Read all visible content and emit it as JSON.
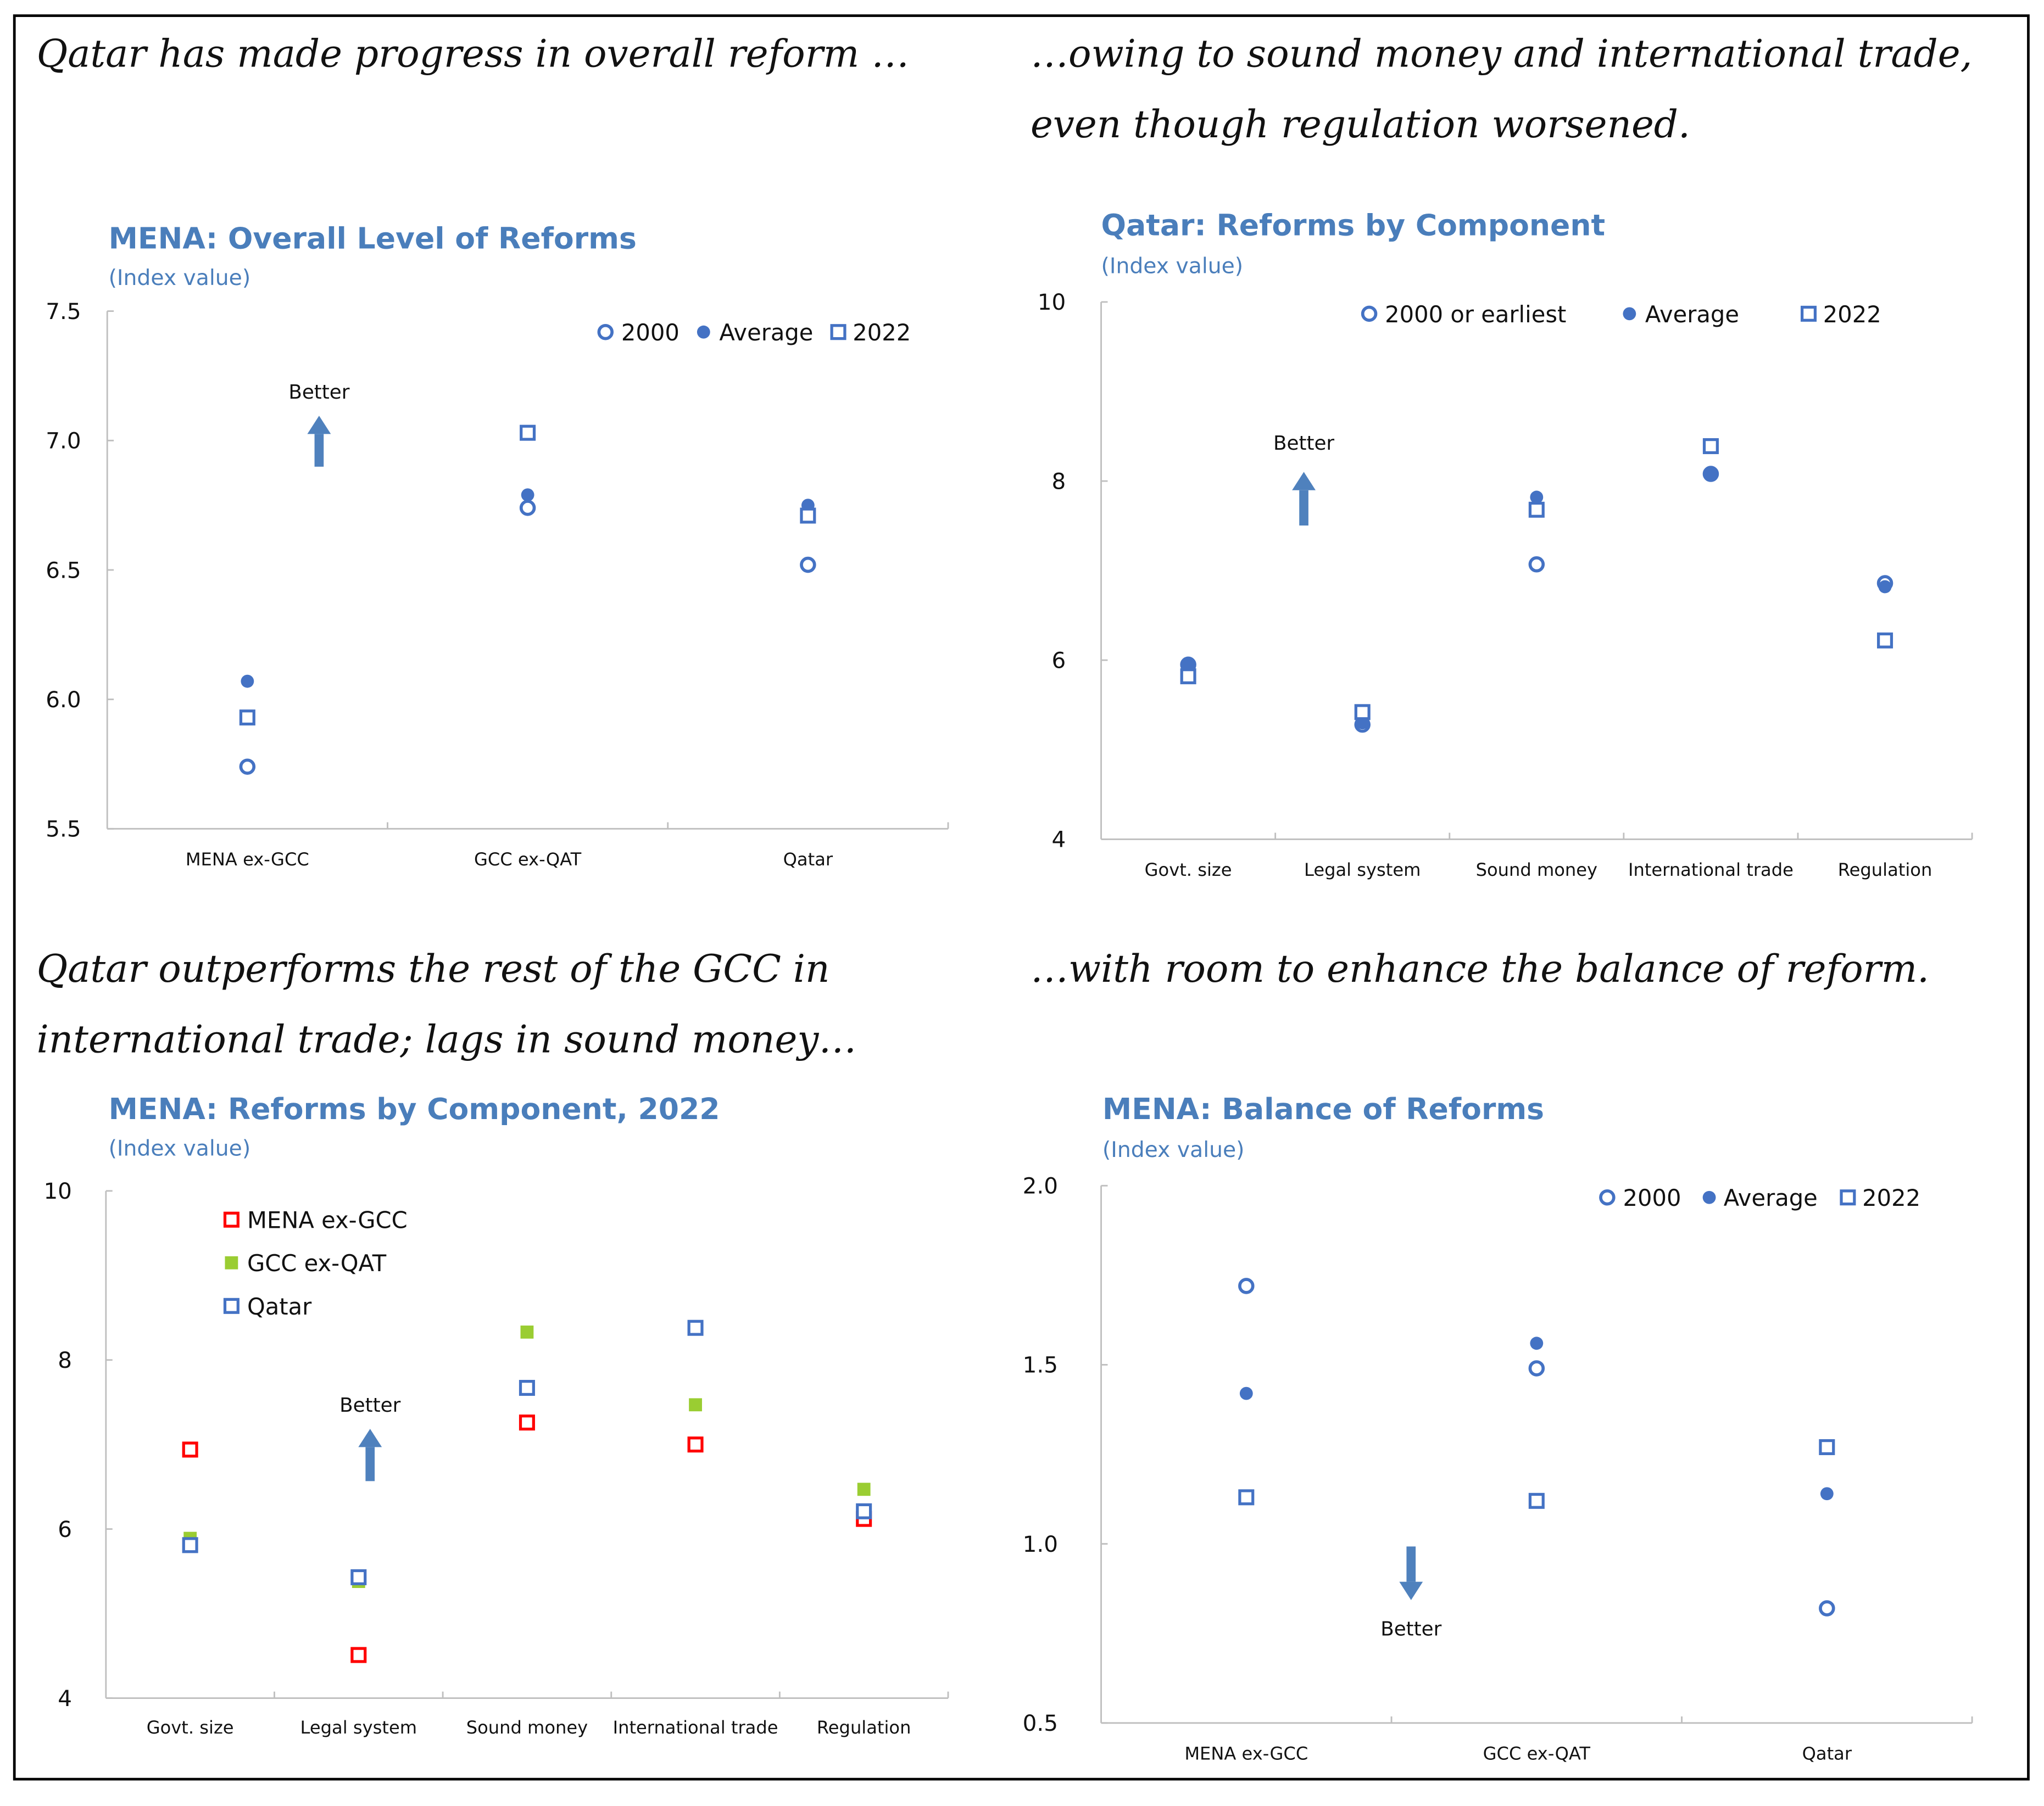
{
  "captions": {
    "top_left": "Qatar has made progress in overall reform …",
    "top_right": "…owing to sound money and international trade, even though regulation worsened.",
    "bottom_left": "Qatar outperforms the rest of the GCC in international trade; lags in sound money…",
    "bottom_right": "…with room to enhance the balance of reform."
  },
  "colors": {
    "blue_marker": "#4472c4",
    "title": "#4a7ebb",
    "arrow": "#4f81bd",
    "red": "#ff0000",
    "green": "#9acd32"
  },
  "chart_data": [
    {
      "type": "scatter",
      "title": "MENA: Overall Level of Reforms",
      "subtitle": "(Index value)",
      "categories": [
        "MENA ex-GCC",
        "GCC ex-QAT",
        "Qatar"
      ],
      "ylim": [
        5.5,
        7.5
      ],
      "yticks": [
        "5.5",
        "6.0",
        "6.5",
        "7.0",
        "7.5"
      ],
      "legend_position": "top-right",
      "annotation": {
        "text": "Better",
        "direction": "up"
      },
      "series": [
        {
          "name": "2000",
          "marker": "open-circle",
          "color": "#4472c4",
          "values": [
            5.74,
            6.74,
            6.52
          ]
        },
        {
          "name": "Average",
          "marker": "filled-circle",
          "color": "#4472c4",
          "values": [
            6.07,
            6.79,
            6.75
          ]
        },
        {
          "name": "2022",
          "marker": "open-square",
          "color": "#4472c4",
          "values": [
            5.93,
            7.03,
            6.71
          ]
        }
      ]
    },
    {
      "type": "scatter",
      "title": "Qatar: Reforms by Component",
      "subtitle": "(Index value)",
      "categories": [
        "Govt. size",
        "Legal system",
        "Sound money",
        "International trade",
        "Regulation"
      ],
      "ylim": [
        4,
        10
      ],
      "yticks": [
        "4",
        "6",
        "8",
        "10"
      ],
      "legend_position": "top",
      "annotation": {
        "text": "Better",
        "direction": "up"
      },
      "series": [
        {
          "name": "2000 or earliest",
          "marker": "open-circle",
          "color": "#4472c4",
          "values": [
            5.95,
            5.28,
            7.07,
            8.08,
            6.86
          ]
        },
        {
          "name": "Average",
          "marker": "filled-circle",
          "color": "#4472c4",
          "values": [
            5.94,
            5.3,
            7.82,
            8.07,
            6.82
          ]
        },
        {
          "name": "2022",
          "marker": "open-square",
          "color": "#4472c4",
          "values": [
            5.82,
            5.42,
            7.68,
            8.39,
            6.22
          ]
        }
      ]
    },
    {
      "type": "scatter",
      "title": "MENA: Reforms by Component, 2022",
      "subtitle": "(Index value)",
      "categories": [
        "Govt. size",
        "Legal system",
        "Sound money",
        "International trade",
        "Regulation"
      ],
      "ylim": [
        4,
        10
      ],
      "yticks": [
        "4",
        "6",
        "8",
        "10"
      ],
      "legend_position": "top-left",
      "annotation": {
        "text": "Better",
        "direction": "up"
      },
      "series": [
        {
          "name": "MENA ex-GCC",
          "marker": "open-square",
          "color": "#ff0000",
          "values": [
            6.94,
            4.51,
            7.26,
            7.0,
            6.12
          ]
        },
        {
          "name": "GCC ex-QAT",
          "marker": "filled-square",
          "color": "#9acd32",
          "values": [
            5.89,
            5.38,
            8.33,
            7.47,
            6.47
          ]
        },
        {
          "name": "Qatar",
          "marker": "open-square",
          "color": "#4472c4",
          "values": [
            5.81,
            5.43,
            7.67,
            8.38,
            6.21
          ]
        }
      ]
    },
    {
      "type": "scatter",
      "title": "MENA: Balance of Reforms",
      "subtitle": "(Index value)",
      "categories": [
        "MENA ex-GCC",
        "GCC ex-QAT",
        "Qatar"
      ],
      "ylim": [
        0.5,
        2.0
      ],
      "yticks": [
        "0.5",
        "1.0",
        "1.5",
        "2.0"
      ],
      "legend_position": "top-right",
      "annotation": {
        "text": "Better",
        "direction": "down"
      },
      "series": [
        {
          "name": "2000",
          "marker": "open-circle",
          "color": "#4472c4",
          "values": [
            1.72,
            1.49,
            0.82
          ]
        },
        {
          "name": "Average",
          "marker": "filled-circle",
          "color": "#4472c4",
          "values": [
            1.42,
            1.56,
            1.14
          ]
        },
        {
          "name": "2022",
          "marker": "open-square",
          "color": "#4472c4",
          "values": [
            1.13,
            1.12,
            1.27
          ]
        }
      ]
    }
  ]
}
